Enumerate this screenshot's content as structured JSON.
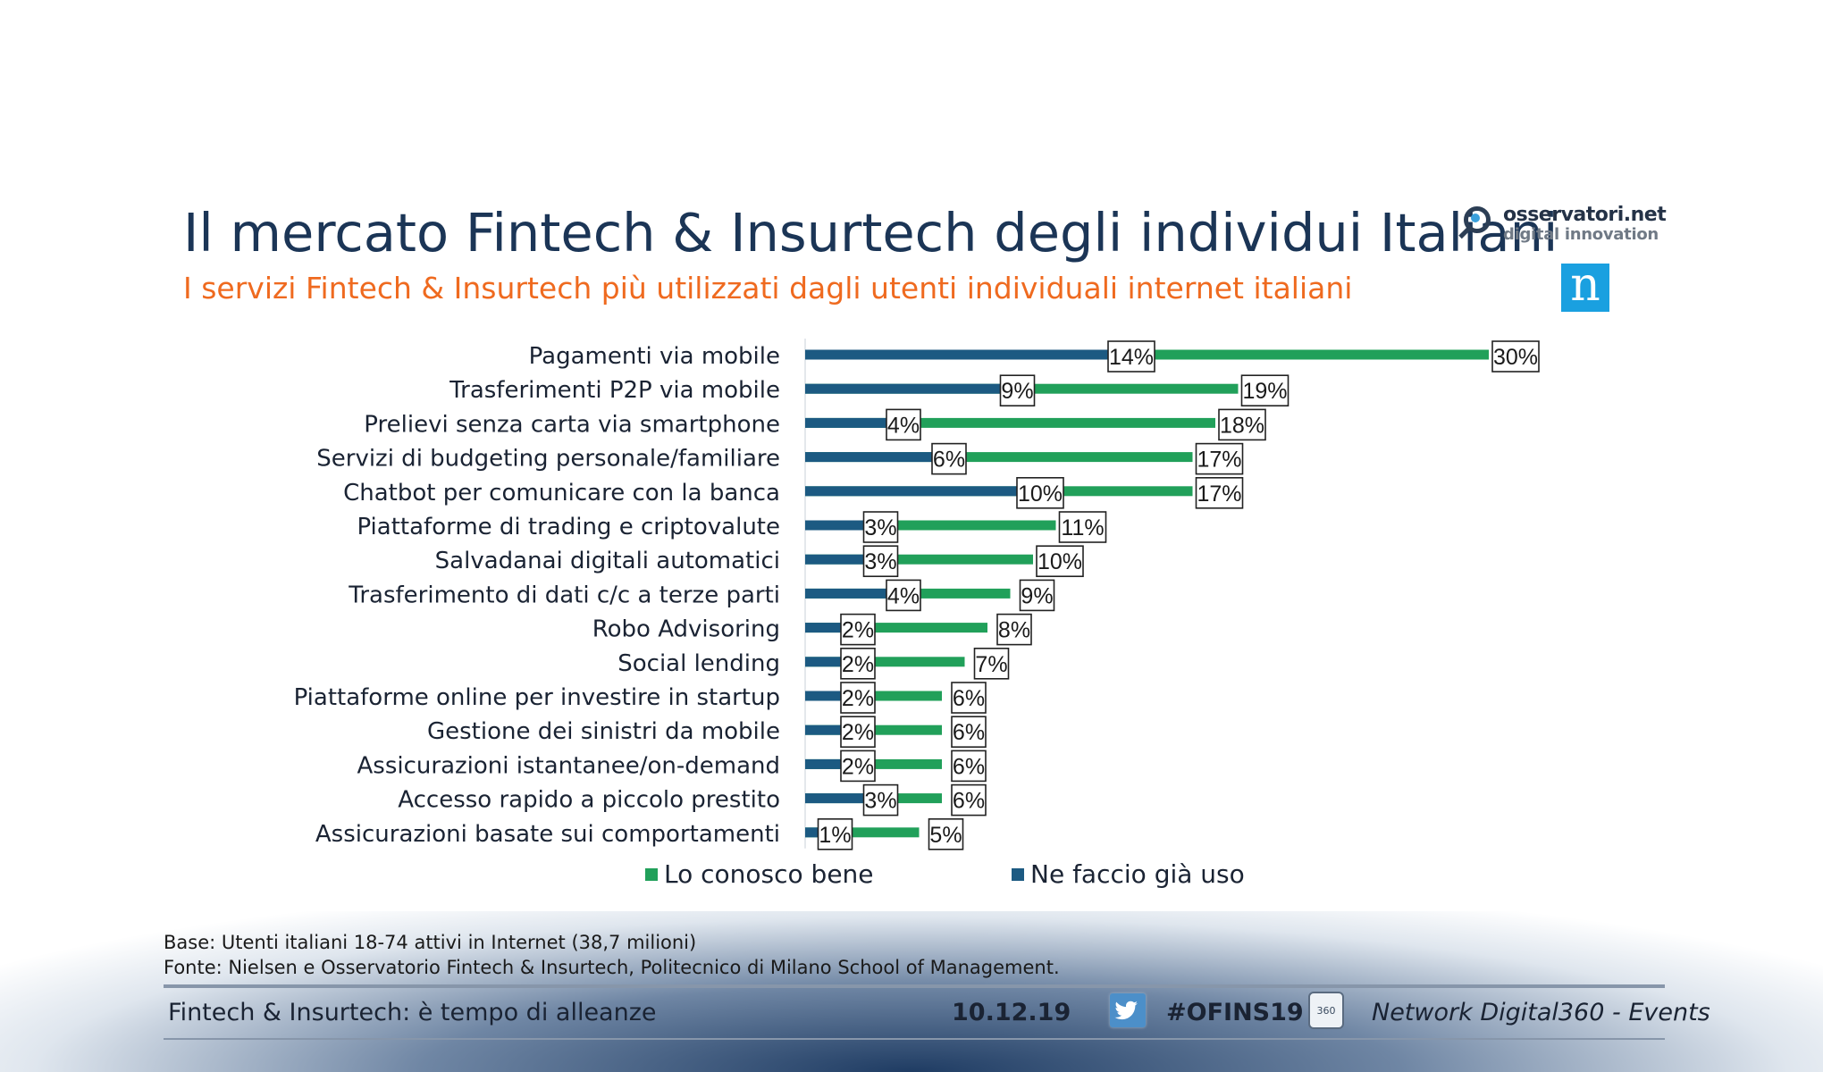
{
  "header": {
    "title": "Il mercato Fintech & Insurtech degli individui Italiani",
    "subtitle": "I servizi Fintech & Insurtech più utilizzati dagli utenti individuali internet italiani",
    "logo_line1": "osservatori.net",
    "logo_line2": "digital innovation",
    "logo_n": "n"
  },
  "chart_data": {
    "type": "bar",
    "orientation": "horizontal",
    "categories": [
      "Pagamenti via mobile",
      "Trasferimenti P2P via mobile",
      "Prelievi senza carta via smartphone",
      "Servizi di budgeting personale/familiare",
      "Chatbot per comunicare con la banca",
      "Piattaforme di trading e criptovalute",
      "Salvadanai digitali automatici",
      "Trasferimento di dati c/c a terze parti",
      "Robo Advisoring",
      "Social lending",
      "Piattaforme online per investire in startup",
      "Gestione dei sinistri da mobile",
      "Assicurazioni istantanee/on-demand",
      "Accesso rapido a piccolo prestito",
      "Assicurazioni basate sui comportamenti"
    ],
    "series": [
      {
        "name": "Ne faccio già uso",
        "color": "#1c5a82",
        "values": [
          14,
          9,
          4,
          6,
          10,
          3,
          3,
          4,
          2,
          2,
          2,
          2,
          2,
          3,
          1
        ]
      },
      {
        "name": "Lo conosco bene",
        "color": "#21a05a",
        "values": [
          30,
          19,
          18,
          17,
          17,
          11,
          10,
          9,
          8,
          7,
          6,
          6,
          6,
          6,
          5
        ]
      }
    ],
    "value_suffix": "%",
    "legend_position": "bottom",
    "grid": false
  },
  "legend": {
    "item1": "Lo conosco bene",
    "item2": "Ne faccio già uso"
  },
  "notes": {
    "base": "Base: Utenti italiani 18-74 attivi in Internet (38,7 milioni)",
    "fonte": "Fonte: Nielsen e Osservatorio Fintech & Insurtech, Politecnico di Milano School of Management."
  },
  "footer": {
    "event": "Fintech & Insurtech: è tempo di alleanze",
    "date": "10.12.19",
    "hashtag": "#OFINS19",
    "icon_360_label": "360",
    "network": "Network Digital360 - Events"
  },
  "colors": {
    "title": "#1b3556",
    "subtitle": "#ef6a1f",
    "uso": "#1c5a82",
    "conosco": "#21a05a"
  },
  "icons": [
    "osservatori-logo-icon",
    "nielsen-logo-icon",
    "twitter-icon",
    "digital360-icon"
  ]
}
